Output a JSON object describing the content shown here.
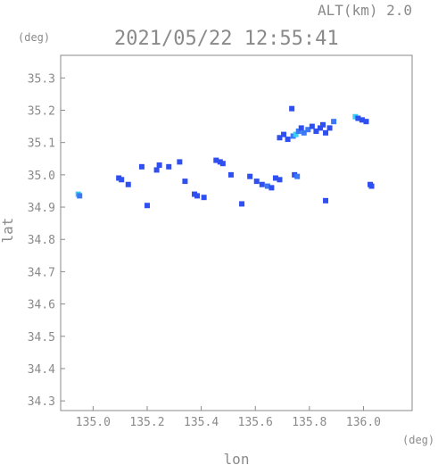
{
  "chart_data": {
    "type": "scatter",
    "title": "2021/05/22 12:55:41",
    "subtitle": "ALT(km) 2.0",
    "xlabel": "lon",
    "ylabel": "lat",
    "x_unit": "(deg)",
    "y_unit": "(deg)",
    "xlim": [
      134.88,
      136.18
    ],
    "ylim": [
      34.27,
      35.37
    ],
    "xticks": [
      135.0,
      135.2,
      135.4,
      135.6,
      135.8,
      136.0
    ],
    "xtick_labels": [
      "135.0",
      "135.2",
      "135.4",
      "135.6",
      "135.8",
      "136.0"
    ],
    "yticks": [
      34.3,
      34.4,
      34.5,
      34.6,
      34.7,
      34.8,
      34.9,
      35.0,
      35.1,
      35.2,
      35.3
    ],
    "ytick_labels": [
      "34.3",
      "34.4",
      "34.5",
      "34.6",
      "34.7",
      "34.8",
      "34.9",
      "35.0",
      "35.1",
      "35.2",
      "35.3"
    ],
    "grid": false,
    "colors": {
      "axis": "#8a8a8a",
      "low": "#2f4ff0",
      "mid": "#3a78f5",
      "high": "#38d0f0"
    },
    "points": [
      {
        "x": 134.945,
        "y": 34.94,
        "level": "high"
      },
      {
        "x": 134.95,
        "y": 34.935,
        "level": "mid"
      },
      {
        "x": 135.095,
        "y": 34.99,
        "level": "low"
      },
      {
        "x": 135.105,
        "y": 34.985,
        "level": "low"
      },
      {
        "x": 135.13,
        "y": 34.97,
        "level": "low"
      },
      {
        "x": 135.18,
        "y": 35.025,
        "level": "low"
      },
      {
        "x": 135.2,
        "y": 34.905,
        "level": "low"
      },
      {
        "x": 135.235,
        "y": 35.015,
        "level": "low"
      },
      {
        "x": 135.245,
        "y": 35.03,
        "level": "low"
      },
      {
        "x": 135.28,
        "y": 35.025,
        "level": "low"
      },
      {
        "x": 135.32,
        "y": 35.04,
        "level": "low"
      },
      {
        "x": 135.34,
        "y": 34.98,
        "level": "low"
      },
      {
        "x": 135.375,
        "y": 34.94,
        "level": "low"
      },
      {
        "x": 135.385,
        "y": 34.935,
        "level": "low"
      },
      {
        "x": 135.41,
        "y": 34.93,
        "level": "low"
      },
      {
        "x": 135.455,
        "y": 35.045,
        "level": "low"
      },
      {
        "x": 135.47,
        "y": 35.04,
        "level": "low"
      },
      {
        "x": 135.48,
        "y": 35.035,
        "level": "low"
      },
      {
        "x": 135.51,
        "y": 35.0,
        "level": "low"
      },
      {
        "x": 135.55,
        "y": 34.91,
        "level": "low"
      },
      {
        "x": 135.58,
        "y": 34.995,
        "level": "low"
      },
      {
        "x": 135.605,
        "y": 34.98,
        "level": "low"
      },
      {
        "x": 135.625,
        "y": 34.97,
        "level": "low"
      },
      {
        "x": 135.645,
        "y": 34.965,
        "level": "mid"
      },
      {
        "x": 135.66,
        "y": 34.96,
        "level": "low"
      },
      {
        "x": 135.675,
        "y": 34.99,
        "level": "low"
      },
      {
        "x": 135.69,
        "y": 34.985,
        "level": "low"
      },
      {
        "x": 135.745,
        "y": 35.0,
        "level": "low"
      },
      {
        "x": 135.755,
        "y": 34.995,
        "level": "mid"
      },
      {
        "x": 135.86,
        "y": 34.92,
        "level": "low"
      },
      {
        "x": 136.025,
        "y": 34.97,
        "level": "low"
      },
      {
        "x": 136.03,
        "y": 34.965,
        "level": "low"
      },
      {
        "x": 135.735,
        "y": 35.205,
        "level": "low"
      },
      {
        "x": 135.69,
        "y": 35.115,
        "level": "low"
      },
      {
        "x": 135.705,
        "y": 35.125,
        "level": "low"
      },
      {
        "x": 135.72,
        "y": 35.11,
        "level": "low"
      },
      {
        "x": 135.74,
        "y": 35.12,
        "level": "mid"
      },
      {
        "x": 135.75,
        "y": 35.125,
        "level": "high"
      },
      {
        "x": 135.76,
        "y": 35.135,
        "level": "mid"
      },
      {
        "x": 135.77,
        "y": 35.145,
        "level": "low"
      },
      {
        "x": 135.78,
        "y": 35.13,
        "level": "mid"
      },
      {
        "x": 135.795,
        "y": 35.14,
        "level": "mid"
      },
      {
        "x": 135.81,
        "y": 35.15,
        "level": "low"
      },
      {
        "x": 135.825,
        "y": 35.135,
        "level": "low"
      },
      {
        "x": 135.84,
        "y": 35.145,
        "level": "low"
      },
      {
        "x": 135.85,
        "y": 35.155,
        "level": "low"
      },
      {
        "x": 135.86,
        "y": 35.13,
        "level": "low"
      },
      {
        "x": 135.875,
        "y": 35.145,
        "level": "low"
      },
      {
        "x": 135.89,
        "y": 35.165,
        "level": "mid"
      },
      {
        "x": 135.97,
        "y": 35.18,
        "level": "high"
      },
      {
        "x": 135.98,
        "y": 35.175,
        "level": "low"
      },
      {
        "x": 135.995,
        "y": 35.17,
        "level": "low"
      },
      {
        "x": 136.01,
        "y": 35.165,
        "level": "low"
      }
    ]
  }
}
